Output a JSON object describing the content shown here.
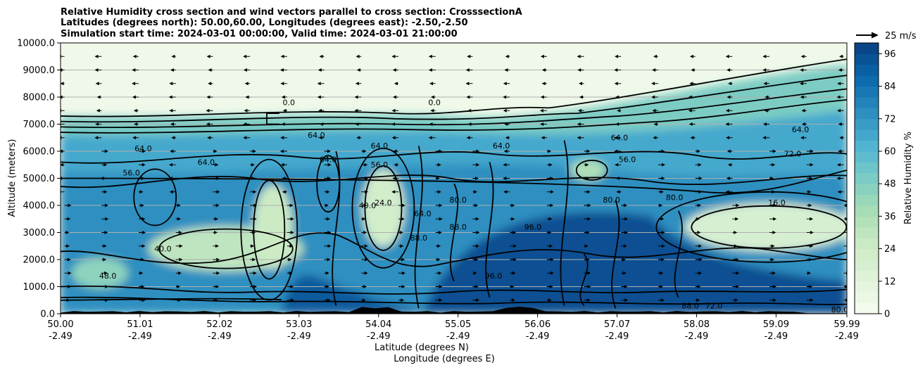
{
  "chart_data": {
    "type": "heatmap",
    "title_lines": [
      "Relative Humidity cross section and wind vectors parallel to cross section: CrosssectionA",
      "Latitudes (degrees north): 50.00,60.00, Longitudes (degrees east): -2.50,-2.50",
      "Simulation start time: 2024-03-01 00:00:00, Valid time: 2024-03-01 21:00:00"
    ],
    "xlabel_primary": "Latitude (degrees N)",
    "xlabel_secondary": "Longitude (degrees E)",
    "ylabel": "Altitude (meters)",
    "colorbar_label": "Relative Humidity %",
    "xlim": [
      50.0,
      59.99
    ],
    "ylim": [
      0,
      10000
    ],
    "x_ticks": [
      {
        "lat": "50.00",
        "lon": "-2.49",
        "value": 50.0
      },
      {
        "lat": "51.01",
        "lon": "-2.49",
        "value": 51.01
      },
      {
        "lat": "52.02",
        "lon": "-2.49",
        "value": 52.02
      },
      {
        "lat": "53.03",
        "lon": "-2.49",
        "value": 53.03
      },
      {
        "lat": "54.04",
        "lon": "-2.49",
        "value": 54.04
      },
      {
        "lat": "55.05",
        "lon": "-2.49",
        "value": 55.05
      },
      {
        "lat": "56.06",
        "lon": "-2.49",
        "value": 56.06
      },
      {
        "lat": "57.07",
        "lon": "-2.49",
        "value": 57.07
      },
      {
        "lat": "58.08",
        "lon": "-2.49",
        "value": 58.08
      },
      {
        "lat": "59.09",
        "lon": "-2.49",
        "value": 59.09
      },
      {
        "lat": "59.99",
        "lon": "-2.49",
        "value": 59.99
      }
    ],
    "y_ticks": [
      {
        "label": "0.0",
        "value": 0
      },
      {
        "label": "1000.0",
        "value": 1000
      },
      {
        "label": "2000.0",
        "value": 2000
      },
      {
        "label": "3000.0",
        "value": 3000
      },
      {
        "label": "4000.0",
        "value": 4000
      },
      {
        "label": "5000.0",
        "value": 5000
      },
      {
        "label": "6000.0",
        "value": 6000
      },
      {
        "label": "7000.0",
        "value": 7000
      },
      {
        "label": "8000.0",
        "value": 8000
      },
      {
        "label": "9000.0",
        "value": 9000
      },
      {
        "label": "10000.0",
        "value": 10000
      }
    ],
    "colorbar_ticks": [
      {
        "label": "0",
        "value": 0
      },
      {
        "label": "12",
        "value": 12
      },
      {
        "label": "24",
        "value": 24
      },
      {
        "label": "36",
        "value": 36
      },
      {
        "label": "48",
        "value": 48
      },
      {
        "label": "60",
        "value": 60
      },
      {
        "label": "72",
        "value": 72
      },
      {
        "label": "84",
        "value": 84
      },
      {
        "label": "96",
        "value": 96
      }
    ],
    "colorbar_range": [
      0,
      100
    ],
    "colorbar_levels": 25,
    "colormap": [
      "#f7fcf0",
      "#e0f3db",
      "#ccebc5",
      "#a8ddb5",
      "#7bccc4",
      "#4eb3d3",
      "#2b8cbe",
      "#0868ac",
      "#084081"
    ],
    "wind_key_label": "25 m/s",
    "grid": "horizontal",
    "contour_labels": [
      {
        "text": "0.0",
        "lat": 52.9,
        "alt": 7700
      },
      {
        "text": "0.0",
        "lon_lat": 0,
        "lat": 54.75,
        "alt": 7700
      },
      {
        "text": "64.0",
        "lat": 51.05,
        "alt": 6000
      },
      {
        "text": "64.0",
        "lat": 51.85,
        "alt": 5500
      },
      {
        "text": "56.0",
        "lat": 50.9,
        "alt": 5100
      },
      {
        "text": "64.0",
        "lat": 53.25,
        "alt": 6500
      },
      {
        "text": "64.0",
        "lat": 54.05,
        "alt": 6100
      },
      {
        "text": "64.0",
        "lat": 53.4,
        "alt": 5600
      },
      {
        "text": "56.0",
        "lat": 54.05,
        "alt": 5400
      },
      {
        "text": "64.0",
        "lat": 55.6,
        "alt": 6100
      },
      {
        "text": "56.0",
        "lat": 57.2,
        "alt": 5600
      },
      {
        "text": "64.0",
        "lat": 57.1,
        "alt": 6400
      },
      {
        "text": "64.0",
        "lat": 59.4,
        "alt": 6700
      },
      {
        "text": "72.0",
        "lat": 59.3,
        "alt": 5800
      },
      {
        "text": "24.0",
        "lat": 54.1,
        "alt": 4000
      },
      {
        "text": "40.0",
        "lat": 53.9,
        "alt": 3900
      },
      {
        "text": "16.0",
        "lat": 59.1,
        "alt": 4000
      },
      {
        "text": "64.0",
        "lat": 54.6,
        "alt": 3600
      },
      {
        "text": "88.0",
        "lat": 54.55,
        "alt": 2700
      },
      {
        "text": "88.0",
        "lat": 58.0,
        "alt": 200
      },
      {
        "text": "72.0",
        "lat": 58.3,
        "alt": 200
      },
      {
        "text": "40.0",
        "lat": 51.3,
        "alt": 2300
      },
      {
        "text": "48.0",
        "lat": 50.6,
        "alt": 1300
      },
      {
        "text": "80.0",
        "lat": 55.05,
        "alt": 4100
      },
      {
        "text": "88.0",
        "lat": 55.05,
        "alt": 3100
      },
      {
        "text": "96.0",
        "lat": 56.0,
        "alt": 3100
      },
      {
        "text": "96.0",
        "lat": 55.5,
        "alt": 1300
      },
      {
        "text": "80.0",
        "lat": 57.0,
        "alt": 4100
      },
      {
        "text": "80.0",
        "lat": 57.8,
        "alt": 4200
      },
      {
        "text": "80.0",
        "lat": 59.9,
        "alt": 50
      }
    ]
  }
}
